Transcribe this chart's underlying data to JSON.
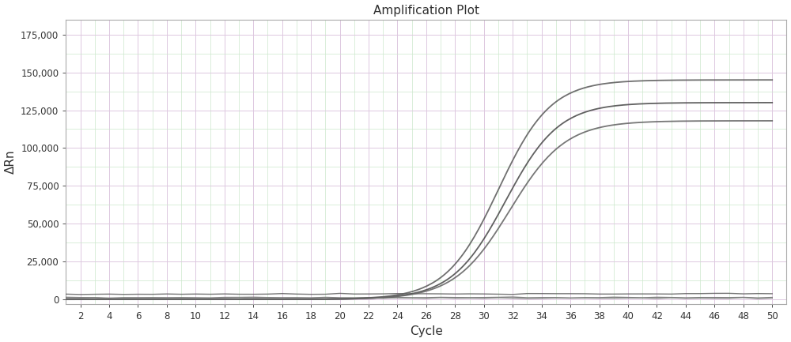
{
  "title": "Amplification Plot",
  "xlabel": "Cycle",
  "ylabel": "ΔRn",
  "xlim": [
    1,
    51
  ],
  "ylim": [
    -3000,
    185000
  ],
  "xticks": [
    2,
    4,
    6,
    8,
    10,
    12,
    14,
    16,
    18,
    20,
    22,
    24,
    26,
    28,
    30,
    32,
    34,
    36,
    38,
    40,
    42,
    44,
    46,
    48,
    50
  ],
  "yticks": [
    0,
    25000,
    50000,
    75000,
    100000,
    125000,
    150000,
    175000
  ],
  "background_color": "#ffffff",
  "major_grid_color": "#ddc8e0",
  "minor_grid_color": "#cce8cc",
  "sigmoid_curves": [
    {
      "midpoint": 31.0,
      "steepness": 0.55,
      "max_val": 145000,
      "color": "#606060",
      "lw": 1.3
    },
    {
      "midpoint": 31.5,
      "steepness": 0.54,
      "max_val": 130000,
      "color": "#505050",
      "lw": 1.3
    },
    {
      "midpoint": 31.8,
      "steepness": 0.52,
      "max_val": 118000,
      "color": "#686868",
      "lw": 1.3
    }
  ],
  "flat_curves": [
    {
      "base": 1200,
      "slope": 60,
      "color": "#707070",
      "lw": 1.0
    },
    {
      "base": 3500,
      "slope": 100,
      "color": "#606060",
      "lw": 1.0
    },
    {
      "base": 800,
      "slope": 40,
      "color": "#808080",
      "lw": 1.0
    }
  ],
  "figsize": [
    10.0,
    4.33
  ],
  "dpi": 100
}
